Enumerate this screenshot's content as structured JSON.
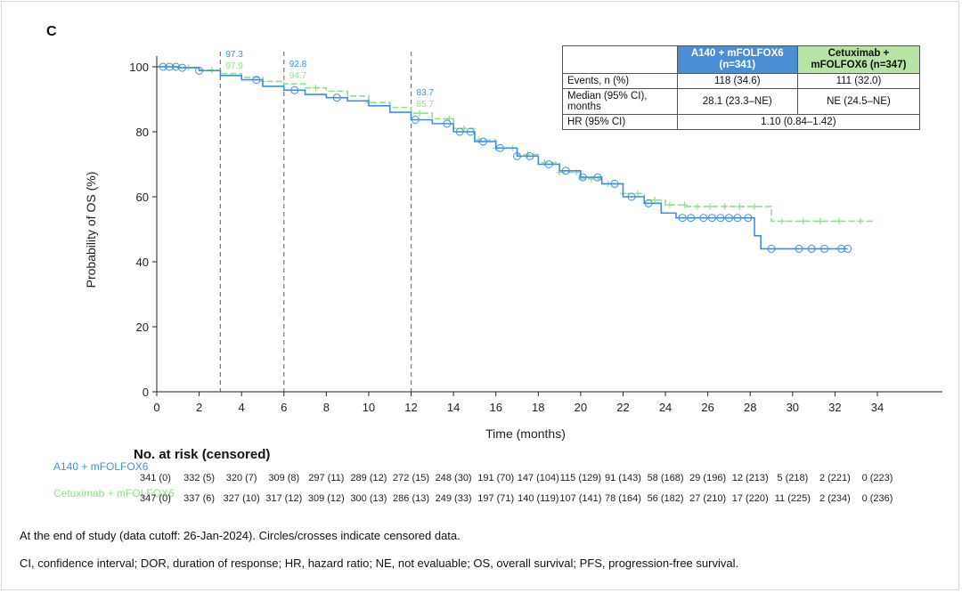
{
  "panel_label": "C",
  "colors": {
    "armA": "#3d8fe0",
    "armB": "#8ee08a",
    "armA_header": "#4a8fd6",
    "armB_header": "#b7e3a5"
  },
  "chart_data": {
    "type": "line",
    "xlabel": "Time (months)",
    "ylabel": "Probability of OS (%)",
    "xlim": [
      0,
      37
    ],
    "ylim": [
      0,
      100
    ],
    "x_ticks": [
      0,
      2,
      4,
      6,
      8,
      10,
      12,
      14,
      16,
      18,
      20,
      22,
      24,
      26,
      28,
      30,
      32,
      34
    ],
    "y_ticks": [
      0,
      20,
      40,
      60,
      80,
      100
    ],
    "reference_lines_x": [
      3,
      6,
      12
    ],
    "annotations": [
      {
        "x": 3,
        "armA": "97.3",
        "armB": "97.9"
      },
      {
        "x": 6,
        "armA": "92.8",
        "armB": "94.7"
      },
      {
        "x": 12,
        "armA": "83.7",
        "armB": "85.7"
      }
    ],
    "series": [
      {
        "name": "A140 + mFOLFOX6",
        "x": [
          0,
          1,
          2,
          3,
          4,
          5,
          6,
          7,
          8,
          9,
          10,
          11,
          12,
          13,
          14,
          15,
          16,
          17,
          18,
          19,
          20,
          21,
          22,
          23,
          23.8,
          24.5,
          26,
          27,
          28,
          28.2,
          28.5,
          30,
          31,
          32,
          32.6
        ],
        "y": [
          100,
          99.7,
          98.8,
          97.3,
          96,
          94,
          92.8,
          91.5,
          90.5,
          89.5,
          88,
          86,
          83.7,
          82.5,
          80,
          77,
          75,
          72.5,
          70,
          68,
          66,
          64,
          60,
          58,
          55,
          53.5,
          53.5,
          53.5,
          53.5,
          48,
          44,
          44,
          44,
          44,
          44
        ],
        "censor_x": [
          0.3,
          0.6,
          0.9,
          1.2,
          2,
          4.7,
          6.5,
          8.5,
          12.2,
          13.7,
          14.3,
          14.8,
          15.4,
          16.2,
          17,
          17.6,
          18.5,
          19.3,
          20.1,
          20.8,
          21.6,
          22.4,
          23.2,
          24.8,
          25.2,
          25.8,
          26.2,
          26.6,
          27,
          27.4,
          27.9,
          29,
          30.3,
          30.9,
          31.5,
          32.3,
          32.6
        ]
      },
      {
        "name": "Cetuximab + mFOLFOX6",
        "x": [
          0,
          1,
          2,
          3,
          4,
          5,
          6,
          7,
          8,
          9,
          10,
          11,
          12,
          13,
          14,
          15,
          16,
          17,
          18,
          19,
          20,
          21,
          22,
          23,
          24,
          25,
          26,
          27,
          28,
          29,
          30,
          31,
          32,
          33.8
        ],
        "y": [
          100,
          99.8,
          99,
          97.9,
          96.7,
          95.5,
          94.7,
          93.5,
          92.5,
          91,
          89,
          87.5,
          85.7,
          84,
          81,
          77.5,
          75,
          73,
          70.5,
          67.5,
          65.5,
          64,
          61,
          59,
          57.5,
          57,
          57,
          57,
          57,
          52.5,
          52.5,
          52.5,
          52.5,
          52.5
        ],
        "censor_x": [
          0.4,
          0.8,
          1.5,
          2.6,
          5,
          7.5,
          10,
          12.4,
          13.8,
          14.5,
          15.2,
          16,
          16.8,
          17.5,
          18.3,
          19,
          19.8,
          20.5,
          21.3,
          22,
          22.7,
          23.5,
          24.2,
          24.9,
          25.5,
          26.1,
          26.8,
          27.5,
          28.2,
          29.5,
          30.5,
          31.3,
          32.2,
          33.2
        ]
      }
    ]
  },
  "summary_table": {
    "headers": [
      "",
      "A140 + mFOLFOX6 (n=341)",
      "Cetuximab + mFOLFOX6 (n=347)"
    ],
    "rows": [
      {
        "label": "Events, n (%)",
        "a": "118 (34.6)",
        "b": "111 (32.0)"
      },
      {
        "label": "Median (95% CI), months",
        "a": "28.1 (23.3–NE)",
        "b": "NE (24.5–NE)"
      },
      {
        "label": "HR (95% CI)",
        "merged": "1.10 (0.84–1.42)"
      }
    ]
  },
  "risk_table": {
    "title": "No. at risk (censored)",
    "arms": [
      {
        "name": "A140 + mFOLFOX6",
        "values": [
          "341 (0)",
          "332 (5)",
          "320 (7)",
          "309 (8)",
          "297 (11)",
          "289 (12)",
          "272 (15)",
          "248 (30)",
          "191 (70)",
          "147 (104)",
          "115 (129)",
          "91 (143)",
          "58 (168)",
          "29 (196)",
          "12 (213)",
          "5 (218)",
          "2 (221)",
          "0 (223)"
        ]
      },
      {
        "name": "Cetuximab + mFOLFOX6",
        "values": [
          "347 (0)",
          "337 (6)",
          "327 (10)",
          "317 (12)",
          "309 (12)",
          "300 (13)",
          "286 (13)",
          "249 (33)",
          "197 (71)",
          "140 (119)",
          "107 (141)",
          "78 (164)",
          "56 (182)",
          "27 (210)",
          "17 (220)",
          "11 (225)",
          "2 (234)",
          "0 (236)"
        ]
      }
    ]
  },
  "footnotes": [
    "At the end of study (data cutoff: 26-Jan-2024). Circles/crosses indicate censored data.",
    "CI, confidence interval; DOR, duration of response; HR, hazard ratio; NE, not evaluable; OS, overall survival; PFS, progression-free survival."
  ]
}
